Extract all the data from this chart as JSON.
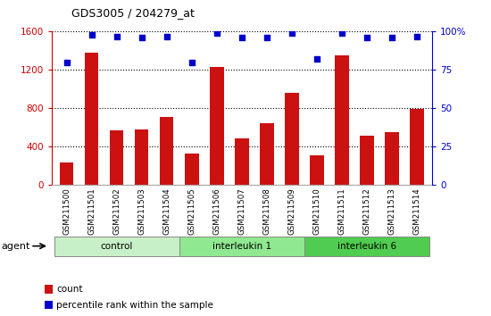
{
  "title": "GDS3005 / 204279_at",
  "samples": [
    "GSM211500",
    "GSM211501",
    "GSM211502",
    "GSM211503",
    "GSM211504",
    "GSM211505",
    "GSM211506",
    "GSM211507",
    "GSM211508",
    "GSM211509",
    "GSM211510",
    "GSM211511",
    "GSM211512",
    "GSM211513",
    "GSM211514"
  ],
  "counts": [
    230,
    1380,
    570,
    580,
    710,
    330,
    1230,
    490,
    640,
    960,
    310,
    1350,
    510,
    550,
    790
  ],
  "percentiles": [
    80,
    98,
    97,
    96,
    97,
    80,
    99,
    96,
    96,
    99,
    82,
    99,
    96,
    96,
    97
  ],
  "groups": [
    {
      "label": "control",
      "start": 0,
      "end": 5,
      "color": "#c8f0c8"
    },
    {
      "label": "interleukin 1",
      "start": 5,
      "end": 10,
      "color": "#90e890"
    },
    {
      "label": "interleukin 6",
      "start": 10,
      "end": 15,
      "color": "#50cc50"
    }
  ],
  "bar_color": "#cc1111",
  "dot_color": "#0000cc",
  "left_axis_color": "#cc0000",
  "right_axis_color": "#0000cc",
  "ylim_left": [
    0,
    1600
  ],
  "ylim_right": [
    0,
    100
  ],
  "yticks_left": [
    0,
    400,
    800,
    1200,
    1600
  ],
  "yticks_right": [
    0,
    25,
    50,
    75,
    100
  ],
  "background_color": "#ffffff",
  "tick_label_area_color": "#d8d8d8",
  "agent_label": "agent",
  "legend_count_label": "count",
  "legend_pct_label": "percentile rank within the sample"
}
